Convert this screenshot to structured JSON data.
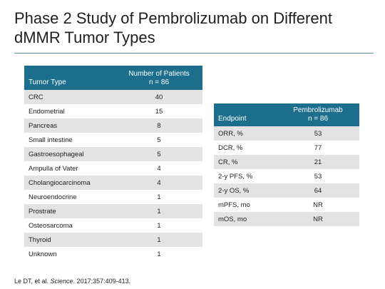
{
  "slide": {
    "title": "Phase 2 Study of Pembrolizumab on Different dMMR Tumor Types"
  },
  "tumor_table": {
    "headers": {
      "tumor_type": "Tumor Type",
      "patients_line1": "Number of Patients",
      "patients_line2": "n = 86"
    },
    "rows": [
      {
        "type": "CRC",
        "count": "40"
      },
      {
        "type": "Endometrial",
        "count": "15"
      },
      {
        "type": "Pancreas",
        "count": "8"
      },
      {
        "type": "Small intestine",
        "count": "5"
      },
      {
        "type": "Gastroesophageal",
        "count": "5"
      },
      {
        "type": "Ampulla of Vater",
        "count": "4"
      },
      {
        "type": "Cholangiocarcinoma",
        "count": "4"
      },
      {
        "type": "Neuroendocrine",
        "count": "1"
      },
      {
        "type": "Prostrate",
        "count": "1"
      },
      {
        "type": "Osteosarcoma",
        "count": "1"
      },
      {
        "type": "Thyroid",
        "count": "1"
      },
      {
        "type": "Unknown",
        "count": "1"
      }
    ]
  },
  "endpoint_table": {
    "headers": {
      "endpoint": "Endpoint",
      "drug_line1": "Pembrolizumab",
      "drug_line2": "n = 86"
    },
    "rows": [
      {
        "endpoint": "ORR, %",
        "value": "53"
      },
      {
        "endpoint": "DCR, %",
        "value": "77"
      },
      {
        "endpoint": "CR, %",
        "value": "21"
      },
      {
        "endpoint": "2-y PFS, %",
        "value": "53"
      },
      {
        "endpoint": "2-y OS, %",
        "value": "64"
      },
      {
        "endpoint": "mPFS, mo",
        "value": "NR"
      },
      {
        "endpoint": "mOS, mo",
        "value": "NR"
      }
    ]
  },
  "citation": {
    "authors": "Le DT, et al. ",
    "journal": "Science",
    "details": ". 2017;357:409-413."
  },
  "colors": {
    "header_bg": "#1c6e8c",
    "stripe": "#e3e3e3",
    "rule": "#5b8ea0"
  }
}
